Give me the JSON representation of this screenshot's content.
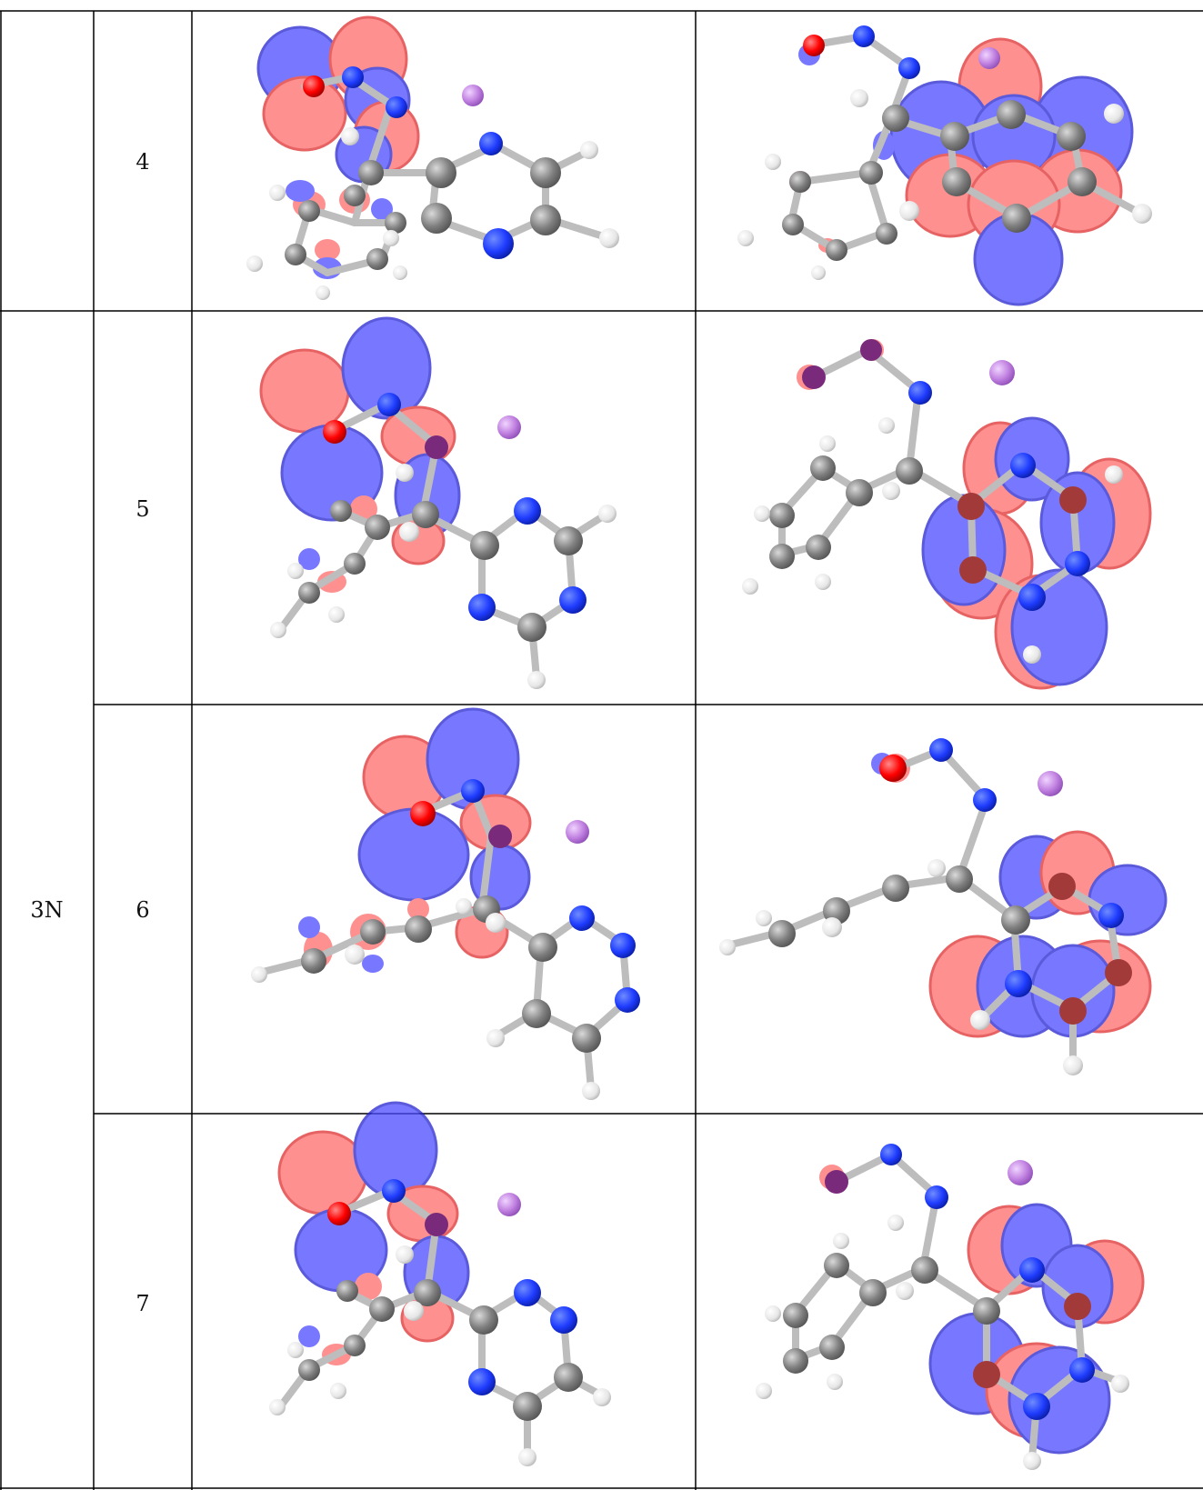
{
  "table": {
    "group_label": "3N",
    "rows": [
      {
        "id": "4"
      },
      {
        "id": "5"
      },
      {
        "id": "6"
      },
      {
        "id": "7"
      }
    ]
  },
  "colors": {
    "orbital_positive": "#ff6666",
    "orbital_negative": "#4a4aff",
    "carbon": "#808080",
    "hydrogen": "#f2f2f2",
    "nitrogen": "#1f3cff",
    "oxygen": "#ff0000",
    "cation": "#c080e0",
    "bond": "#c8c8c8",
    "rule": "#000000"
  }
}
